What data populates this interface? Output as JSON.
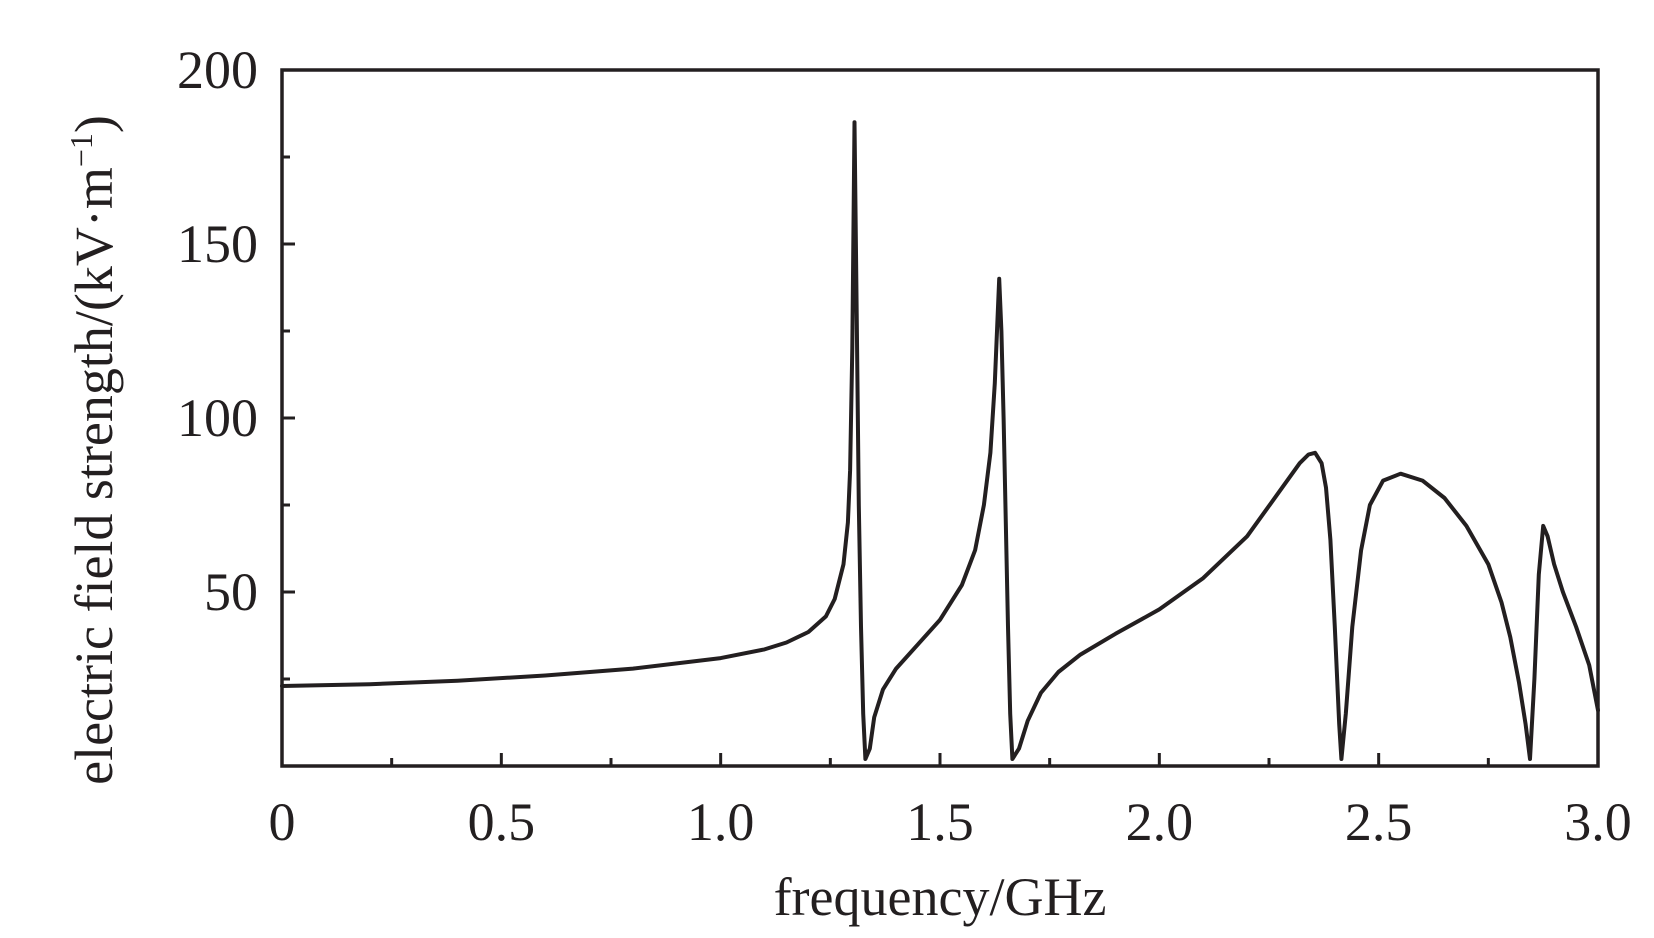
{
  "chart_data": {
    "type": "line",
    "title": "",
    "xlabel": "frequency/GHz",
    "ylabel": {
      "main": "electric field strength/(kV·m",
      "superscript": "−1",
      "close": ")"
    },
    "xlim": [
      0,
      3.0
    ],
    "ylim": [
      0,
      200
    ],
    "x_ticks": [
      0,
      0.5,
      1.0,
      1.5,
      2.0,
      2.5,
      3.0
    ],
    "x_tick_labels": [
      "0",
      "0.5",
      "1.0",
      "1.5",
      "2.0",
      "2.5",
      "3.0"
    ],
    "x_minor_ticks": [
      0.25,
      0.75,
      1.25,
      1.75,
      2.25,
      2.75
    ],
    "y_ticks": [
      50,
      100,
      150,
      200
    ],
    "y_tick_labels": [
      "50",
      "100",
      "150",
      "200"
    ],
    "y_minor_ticks": [
      25,
      75,
      125,
      175
    ],
    "grid": false,
    "series": [
      {
        "color": "#231f20",
        "points": [
          [
            0.0,
            23.0
          ],
          [
            0.2,
            23.5
          ],
          [
            0.4,
            24.5
          ],
          [
            0.6,
            26.0
          ],
          [
            0.8,
            28.0
          ],
          [
            1.0,
            31.0
          ],
          [
            1.1,
            33.5
          ],
          [
            1.15,
            35.5
          ],
          [
            1.2,
            38.5
          ],
          [
            1.24,
            43.0
          ],
          [
            1.26,
            48.0
          ],
          [
            1.28,
            58.0
          ],
          [
            1.29,
            70.0
          ],
          [
            1.295,
            85.0
          ],
          [
            1.3,
            120.0
          ],
          [
            1.305,
            185.0
          ],
          [
            1.31,
            130.0
          ],
          [
            1.315,
            75.0
          ],
          [
            1.32,
            40.0
          ],
          [
            1.325,
            15.0
          ],
          [
            1.33,
            2.0
          ],
          [
            1.34,
            5.0
          ],
          [
            1.35,
            14.0
          ],
          [
            1.37,
            22.0
          ],
          [
            1.4,
            28.0
          ],
          [
            1.45,
            35.0
          ],
          [
            1.5,
            42.0
          ],
          [
            1.55,
            52.0
          ],
          [
            1.58,
            62.0
          ],
          [
            1.6,
            75.0
          ],
          [
            1.615,
            90.0
          ],
          [
            1.625,
            110.0
          ],
          [
            1.63,
            125.0
          ],
          [
            1.635,
            140.0
          ],
          [
            1.64,
            125.0
          ],
          [
            1.645,
            100.0
          ],
          [
            1.65,
            70.0
          ],
          [
            1.655,
            40.0
          ],
          [
            1.66,
            15.0
          ],
          [
            1.665,
            2.0
          ],
          [
            1.68,
            5.0
          ],
          [
            1.7,
            13.0
          ],
          [
            1.73,
            21.0
          ],
          [
            1.77,
            27.0
          ],
          [
            1.82,
            32.0
          ],
          [
            1.9,
            38.0
          ],
          [
            2.0,
            45.0
          ],
          [
            2.1,
            54.0
          ],
          [
            2.2,
            66.0
          ],
          [
            2.28,
            80.0
          ],
          [
            2.32,
            87.0
          ],
          [
            2.34,
            89.5
          ],
          [
            2.355,
            90.0
          ],
          [
            2.37,
            87.0
          ],
          [
            2.38,
            80.0
          ],
          [
            2.39,
            65.0
          ],
          [
            2.4,
            40.0
          ],
          [
            2.41,
            12.0
          ],
          [
            2.415,
            2.0
          ],
          [
            2.425,
            15.0
          ],
          [
            2.44,
            40.0
          ],
          [
            2.46,
            62.0
          ],
          [
            2.48,
            75.0
          ],
          [
            2.51,
            82.0
          ],
          [
            2.55,
            84.0
          ],
          [
            2.6,
            82.0
          ],
          [
            2.65,
            77.0
          ],
          [
            2.7,
            69.0
          ],
          [
            2.75,
            58.0
          ],
          [
            2.78,
            47.0
          ],
          [
            2.8,
            37.0
          ],
          [
            2.82,
            24.0
          ],
          [
            2.835,
            12.0
          ],
          [
            2.845,
            2.0
          ],
          [
            2.855,
            25.0
          ],
          [
            2.865,
            55.0
          ],
          [
            2.875,
            69.0
          ],
          [
            2.885,
            66.0
          ],
          [
            2.9,
            58.0
          ],
          [
            2.92,
            50.0
          ],
          [
            2.95,
            40.0
          ],
          [
            2.98,
            29.0
          ],
          [
            3.0,
            16.0
          ]
        ]
      }
    ]
  }
}
